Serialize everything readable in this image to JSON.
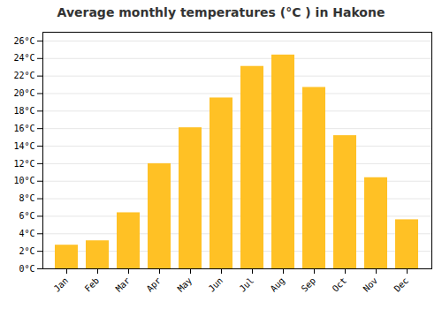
{
  "chart_data": {
    "type": "bar",
    "title": "Average monthly temperatures (°C ) in Hakone",
    "categories": [
      "Jan",
      "Feb",
      "Mar",
      "Apr",
      "May",
      "Jun",
      "Jul",
      "Aug",
      "Sep",
      "Oct",
      "Nov",
      "Dec"
    ],
    "values": [
      2.7,
      3.2,
      6.4,
      12.0,
      16.1,
      19.5,
      23.1,
      24.4,
      20.7,
      15.2,
      10.4,
      5.6
    ],
    "color": "#FFC125",
    "ylim": [
      0,
      27
    ],
    "yticks": [
      {
        "value": 0,
        "label": "0°C"
      },
      {
        "value": 2,
        "label": "2°C"
      },
      {
        "value": 4,
        "label": "4°C"
      },
      {
        "value": 6,
        "label": "6°C"
      },
      {
        "value": 8,
        "label": "8°C"
      },
      {
        "value": 10,
        "label": "10°C"
      },
      {
        "value": 12,
        "label": "12°C"
      },
      {
        "value": 14,
        "label": "14°C"
      },
      {
        "value": 16,
        "label": "16°C"
      },
      {
        "value": 18,
        "label": "18°C"
      },
      {
        "value": 20,
        "label": "20°C"
      },
      {
        "value": 22,
        "label": "22°C"
      },
      {
        "value": 24,
        "label": "24°C"
      },
      {
        "value": 26,
        "label": "26°C"
      }
    ],
    "grid": true
  }
}
